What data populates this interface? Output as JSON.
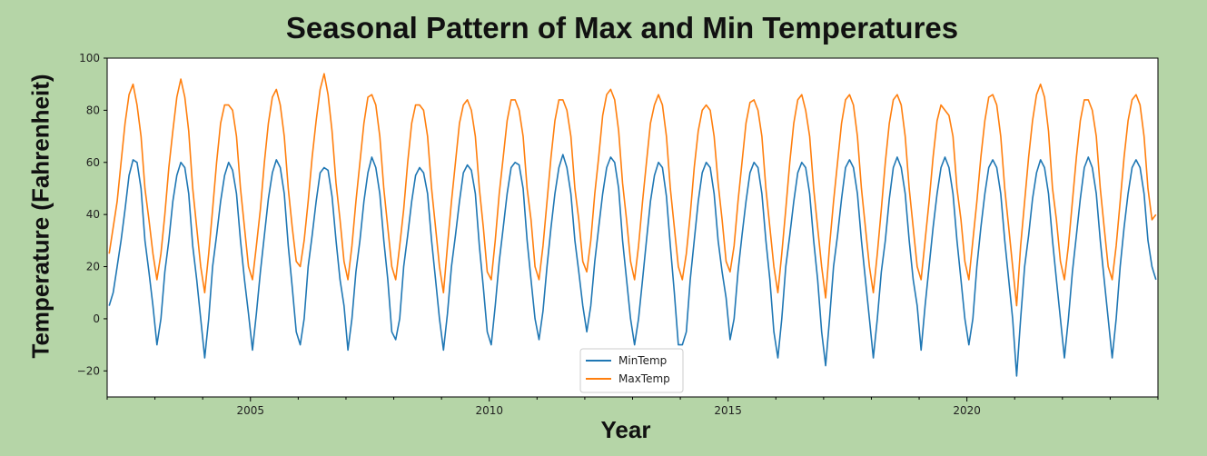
{
  "chart_data": {
    "type": "line",
    "title": "Seasonal Pattern of Max and Min Temperatures",
    "xlabel": "Year",
    "ylabel": "Temperature (Fahrenheit)",
    "xlim": [
      2002.0,
      2024.0
    ],
    "ylim": [
      -30,
      100
    ],
    "x_ticks": [
      2005,
      2010,
      2015,
      2020
    ],
    "y_ticks": [
      -20,
      0,
      20,
      40,
      60,
      80,
      100
    ],
    "grid": false,
    "legend_position": "lower-center",
    "colors": {
      "MinTemp": "#1f77b4",
      "MaxTemp": "#ff7f0e"
    },
    "series": [
      {
        "name": "MinTemp",
        "note_resolution": "approximate monthly values, Jan-Dec per year",
        "x_start": "2002-01",
        "values": [
          5,
          10,
          20,
          30,
          42,
          55,
          61,
          60,
          50,
          30,
          18,
          5,
          -10,
          0,
          18,
          30,
          45,
          55,
          60,
          58,
          48,
          28,
          15,
          0,
          -15,
          0,
          20,
          32,
          45,
          55,
          60,
          57,
          48,
          30,
          15,
          2,
          -12,
          2,
          18,
          32,
          46,
          56,
          61,
          58,
          48,
          28,
          12,
          -5,
          -10,
          0,
          20,
          32,
          45,
          56,
          58,
          57,
          47,
          30,
          15,
          5,
          -12,
          0,
          18,
          30,
          45,
          56,
          62,
          58,
          48,
          30,
          15,
          -5,
          -8,
          0,
          20,
          32,
          45,
          55,
          58,
          56,
          48,
          30,
          15,
          0,
          -12,
          2,
          20,
          32,
          45,
          56,
          59,
          57,
          48,
          28,
          12,
          -5,
          -10,
          5,
          22,
          35,
          48,
          58,
          60,
          59,
          50,
          30,
          15,
          0,
          -8,
          3,
          20,
          35,
          48,
          58,
          63,
          58,
          48,
          30,
          18,
          5,
          -5,
          5,
          22,
          35,
          48,
          58,
          62,
          60,
          50,
          30,
          15,
          0,
          -10,
          0,
          15,
          30,
          45,
          55,
          60,
          58,
          47,
          28,
          10,
          -10,
          -10,
          -5,
          15,
          30,
          45,
          56,
          60,
          58,
          48,
          30,
          18,
          8,
          -8,
          0,
          18,
          32,
          45,
          56,
          60,
          58,
          48,
          30,
          15,
          -5,
          -15,
          0,
          20,
          32,
          45,
          56,
          60,
          58,
          48,
          30,
          15,
          -5,
          -18,
          0,
          20,
          32,
          46,
          58,
          61,
          58,
          48,
          30,
          15,
          0,
          -15,
          0,
          18,
          30,
          46,
          58,
          62,
          58,
          48,
          30,
          15,
          5,
          -12,
          5,
          20,
          35,
          48,
          58,
          62,
          58,
          48,
          30,
          15,
          0,
          -10,
          0,
          20,
          35,
          48,
          58,
          61,
          58,
          48,
          30,
          15,
          0,
          -22,
          0,
          20,
          32,
          46,
          56,
          61,
          58,
          48,
          30,
          15,
          0,
          -15,
          0,
          18,
          32,
          46,
          58,
          62,
          58,
          48,
          30,
          15,
          0,
          -15,
          0,
          20,
          35,
          48,
          58,
          61,
          58,
          48,
          30,
          20,
          15
        ]
      },
      {
        "name": "MaxTemp",
        "note_resolution": "approximate monthly values, Jan-Dec per year",
        "x_start": "2002-01",
        "values": [
          25,
          35,
          45,
          60,
          75,
          86,
          90,
          82,
          70,
          50,
          38,
          25,
          15,
          25,
          40,
          58,
          72,
          85,
          92,
          85,
          72,
          50,
          35,
          20,
          10,
          25,
          42,
          60,
          75,
          82,
          82,
          80,
          70,
          50,
          35,
          20,
          15,
          28,
          42,
          60,
          75,
          85,
          88,
          82,
          70,
          50,
          35,
          22,
          20,
          30,
          45,
          62,
          76,
          88,
          94,
          86,
          72,
          52,
          38,
          22,
          15,
          28,
          45,
          60,
          75,
          85,
          86,
          82,
          70,
          50,
          35,
          20,
          15,
          28,
          42,
          60,
          75,
          82,
          82,
          80,
          70,
          50,
          35,
          20,
          10,
          28,
          45,
          60,
          75,
          82,
          84,
          80,
          70,
          50,
          35,
          18,
          15,
          30,
          48,
          62,
          76,
          84,
          84,
          80,
          70,
          50,
          38,
          20,
          15,
          28,
          45,
          62,
          76,
          84,
          84,
          80,
          70,
          50,
          38,
          22,
          18,
          30,
          48,
          62,
          78,
          86,
          88,
          84,
          72,
          52,
          38,
          22,
          15,
          28,
          45,
          60,
          75,
          82,
          86,
          82,
          70,
          50,
          35,
          20,
          15,
          25,
          40,
          58,
          72,
          80,
          82,
          80,
          70,
          52,
          38,
          22,
          18,
          28,
          45,
          60,
          75,
          83,
          84,
          80,
          70,
          50,
          35,
          20,
          10,
          25,
          42,
          60,
          75,
          84,
          86,
          80,
          70,
          50,
          35,
          20,
          8,
          28,
          45,
          60,
          75,
          84,
          86,
          82,
          70,
          50,
          35,
          20,
          10,
          25,
          42,
          60,
          75,
          84,
          86,
          82,
          70,
          50,
          35,
          20,
          15,
          30,
          45,
          62,
          76,
          82,
          80,
          78,
          70,
          50,
          38,
          22,
          15,
          30,
          45,
          62,
          76,
          85,
          86,
          82,
          70,
          50,
          35,
          20,
          5,
          28,
          45,
          62,
          76,
          86,
          90,
          85,
          72,
          50,
          38,
          22,
          15,
          28,
          45,
          62,
          76,
          84,
          84,
          80,
          70,
          50,
          35,
          20,
          15,
          28,
          45,
          62,
          76,
          84,
          86,
          82,
          70,
          50,
          38,
          40
        ]
      }
    ]
  }
}
